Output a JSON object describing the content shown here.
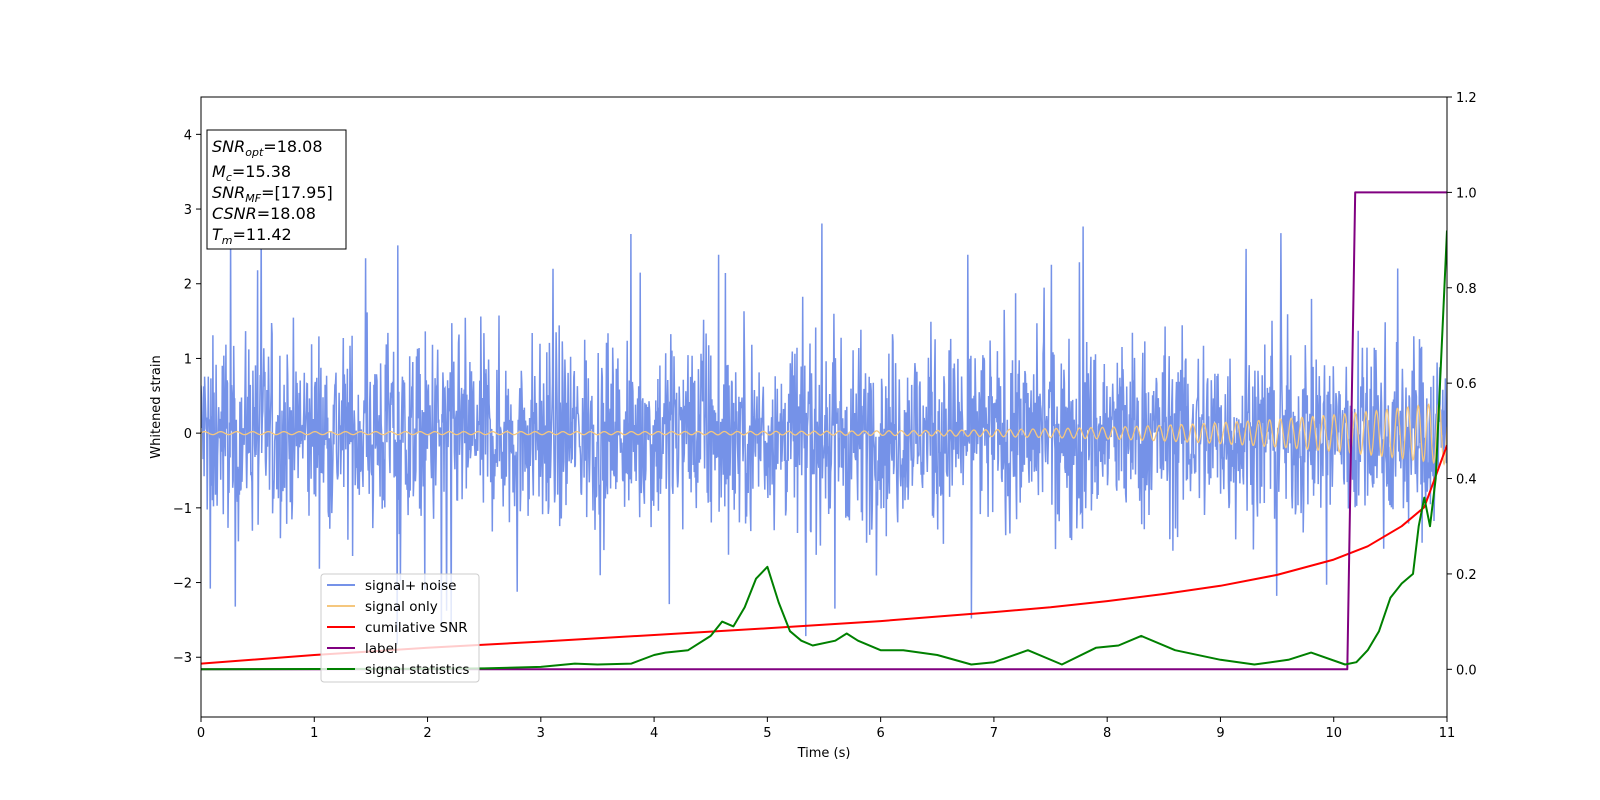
{
  "chart_data": {
    "type": "line",
    "xlabel": "Time (s)",
    "ylabel": "Whitened strain",
    "xlim": [
      0,
      11
    ],
    "ylim": [
      -3.8,
      4.5
    ],
    "y2lim": [
      -0.1,
      1.2
    ],
    "xticks": [
      "0",
      "1",
      "2",
      "3",
      "4",
      "5",
      "6",
      "7",
      "8",
      "9",
      "10",
      "11"
    ],
    "yticks": [
      "−3",
      "−2",
      "−1",
      "0",
      "1",
      "2",
      "3",
      "4"
    ],
    "y2ticks": [
      "0.0",
      "0.2",
      "0.4",
      "0.6",
      "0.8",
      "1.0",
      "1.2"
    ],
    "grid": false,
    "legend_position": "lower-left",
    "info_box": {
      "lines": [
        {
          "sym": "SNR",
          "sub": "opt",
          "value": "=18.08"
        },
        {
          "sym": "M",
          "sub": "c",
          "value": "=15.38"
        },
        {
          "sym": "SNR",
          "sub": "MF",
          "value": "=[17.95]"
        },
        {
          "sym": "CSNR",
          "sub": "",
          "value": "=18.08"
        },
        {
          "sym": "T",
          "sub": "m",
          "value": "=11.42"
        }
      ]
    },
    "series": [
      {
        "name": "signal+ noise",
        "axis": "left",
        "color": "#7592e8",
        "style": "noise",
        "noise_sigma": 0.75,
        "noise_peak": 2.85
      },
      {
        "name": "signal only",
        "axis": "left",
        "color": "#f5c77e",
        "style": "chirp",
        "amplitude_start": 0.02,
        "amplitude_end": 0.42
      },
      {
        "name": "cumilative SNR",
        "axis": "right",
        "color": "#ff0000",
        "x": [
          0,
          1,
          2,
          3,
          4,
          5,
          6,
          7,
          7.5,
          8,
          8.5,
          9,
          9.5,
          10,
          10.3,
          10.6,
          10.8,
          11
        ],
        "y": [
          0.012,
          0.03,
          0.045,
          0.058,
          0.072,
          0.086,
          0.101,
          0.12,
          0.13,
          0.143,
          0.158,
          0.175,
          0.198,
          0.23,
          0.258,
          0.3,
          0.34,
          0.47
        ]
      },
      {
        "name": "label",
        "axis": "right",
        "color": "#800080",
        "x": [
          0,
          10.12,
          10.19,
          11
        ],
        "y": [
          0,
          0,
          1,
          1
        ]
      },
      {
        "name": "signal statistics",
        "axis": "right",
        "color": "#008000",
        "x": [
          0,
          2,
          2.5,
          3,
          3.3,
          3.5,
          3.8,
          4.0,
          4.1,
          4.3,
          4.5,
          4.6,
          4.7,
          4.8,
          4.9,
          5.0,
          5.1,
          5.2,
          5.3,
          5.4,
          5.6,
          5.7,
          5.8,
          6.0,
          6.2,
          6.5,
          6.8,
          7.0,
          7.3,
          7.6,
          7.9,
          8.1,
          8.3,
          8.6,
          9.0,
          9.3,
          9.6,
          9.8,
          10.1,
          10.2,
          10.3,
          10.4,
          10.5,
          10.6,
          10.7,
          10.75,
          10.8,
          10.85,
          10.9,
          11.0
        ],
        "y": [
          0,
          0.001,
          0.002,
          0.005,
          0.012,
          0.01,
          0.012,
          0.03,
          0.035,
          0.04,
          0.07,
          0.1,
          0.09,
          0.13,
          0.19,
          0.215,
          0.14,
          0.08,
          0.06,
          0.05,
          0.06,
          0.075,
          0.06,
          0.04,
          0.04,
          0.03,
          0.01,
          0.015,
          0.04,
          0.01,
          0.045,
          0.05,
          0.07,
          0.04,
          0.02,
          0.01,
          0.02,
          0.035,
          0.01,
          0.015,
          0.04,
          0.08,
          0.15,
          0.18,
          0.2,
          0.3,
          0.36,
          0.3,
          0.4,
          0.92
        ]
      }
    ]
  }
}
